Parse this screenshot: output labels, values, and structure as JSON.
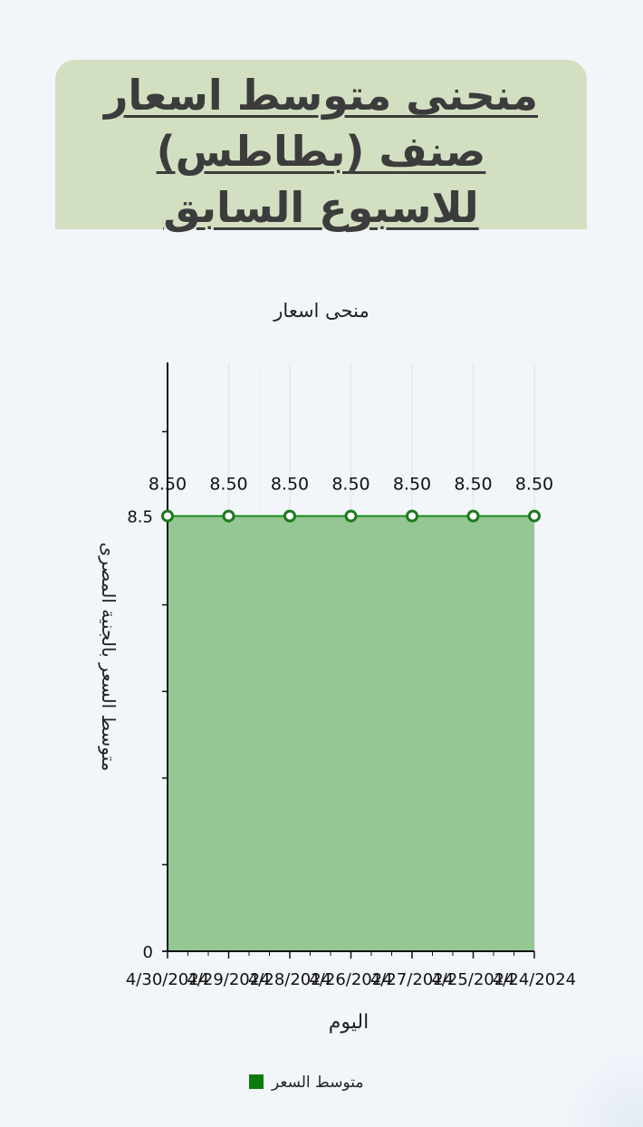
{
  "header": {
    "title": "منحنى متوسط اسعار صنف (بطاطس) للاسبوع السابق"
  },
  "colors": {
    "page_background": "#f2f6fb",
    "title_card": "#d3dfc1",
    "area_fill": "#94c794",
    "line": "#1c8a1c",
    "marker": "#1c7a1c",
    "legend_swatch": "#0d7a0d",
    "grid": "#e3e7e3",
    "axis": "#111111"
  },
  "chart_data": {
    "type": "area",
    "title": "منحى اسعار",
    "xlabel": "اليوم",
    "ylabel": "متوسط السعر بالجنية المصرى",
    "x": [
      "4/30/2024",
      "4/29/2024",
      "4/28/2024",
      "4/26/2024",
      "4/27/2024",
      "4/25/2024",
      "4/24/2024"
    ],
    "series": [
      {
        "name": "متوسط السعر",
        "values": [
          8.5,
          8.5,
          8.5,
          8.5,
          8.5,
          8.5,
          8.5
        ],
        "data_labels": [
          "8.50",
          "8.50",
          "8.50",
          "8.50",
          "8.50",
          "8.50",
          "8.50"
        ]
      }
    ],
    "y_tick_labels": [
      "0",
      "8.5"
    ],
    "ylim": [
      0,
      11.5
    ],
    "grid": true,
    "legend_position": "bottom"
  }
}
